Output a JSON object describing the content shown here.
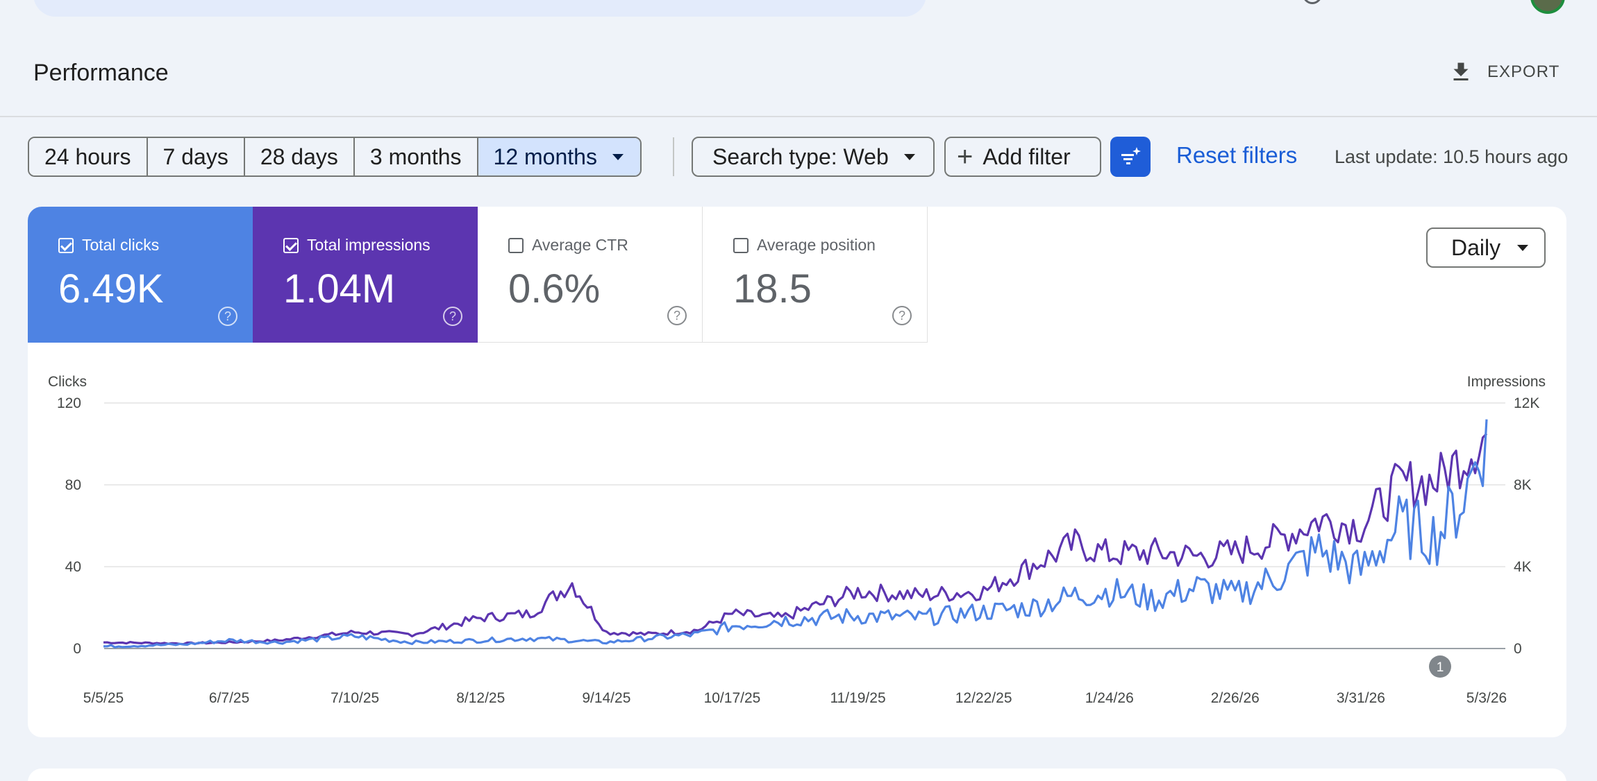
{
  "header": {
    "title": "Performance",
    "export_label": "EXPORT"
  },
  "filters": {
    "date_ranges": [
      "24 hours",
      "7 days",
      "28 days",
      "3 months",
      "12 months"
    ],
    "selected_range": "12 months",
    "search_type": "Search type: Web",
    "add_filter": "Add filter",
    "reset": "Reset filters",
    "last_update": "Last update: 10.5 hours ago"
  },
  "metrics": [
    {
      "label": "Total clicks",
      "value": "6.49K",
      "checked": true
    },
    {
      "label": "Total impressions",
      "value": "1.04M",
      "checked": true
    },
    {
      "label": "Average CTR",
      "value": "0.6%",
      "checked": false
    },
    {
      "label": "Average position",
      "value": "18.5",
      "checked": false
    }
  ],
  "granularity": "Daily",
  "annotation_marker": "1",
  "colors": {
    "clicks": "#4e83e3",
    "impressions": "#5c35b0",
    "accent": "#1f5dd8"
  },
  "chart_data": {
    "type": "line",
    "ylabel_left": "Clicks",
    "ylabel_right": "Impressions",
    "y_left_ticks": [
      "120",
      "80",
      "40",
      "0"
    ],
    "y_right_ticks": [
      "12K",
      "8K",
      "4K",
      "0"
    ],
    "ylim_left": [
      0,
      120
    ],
    "ylim_right": [
      0,
      12000
    ],
    "x_ticks": [
      "5/5/25",
      "6/7/25",
      "7/10/25",
      "8/12/25",
      "9/14/25",
      "10/17/25",
      "11/19/25",
      "12/22/25",
      "1/24/26",
      "2/26/26",
      "3/31/26",
      "5/3/26"
    ],
    "grid": true,
    "series": [
      {
        "name": "Clicks",
        "axis": "left",
        "x": [
          "5/5/25",
          "5/26/25",
          "6/7/25",
          "6/20/25",
          "7/10/25",
          "7/25/25",
          "8/12/25",
          "8/25/25",
          "9/5/25",
          "9/14/25",
          "9/25/25",
          "10/8/25",
          "10/17/25",
          "10/30/25",
          "11/19/25",
          "12/5/25",
          "12/22/25",
          "1/3/26",
          "1/15/26",
          "1/24/26",
          "2/5/26",
          "2/16/26",
          "2/26/26",
          "3/10/26",
          "3/20/26",
          "3/31/26",
          "4/10/26",
          "4/20/26",
          "4/28/26",
          "5/3/26"
        ],
        "values": [
          1,
          2,
          4,
          3,
          6,
          3,
          4,
          5,
          4,
          3,
          5,
          7,
          11,
          14,
          16,
          15,
          18,
          20,
          26,
          28,
          24,
          30,
          26,
          36,
          48,
          38,
          60,
          55,
          78,
          112
        ]
      },
      {
        "name": "Impressions",
        "axis": "right",
        "x": [
          "5/5/25",
          "5/26/25",
          "6/7/25",
          "6/20/25",
          "7/10/25",
          "7/25/25",
          "8/12/25",
          "8/25/25",
          "9/5/25",
          "9/14/25",
          "9/25/25",
          "10/8/25",
          "10/17/25",
          "10/30/25",
          "11/19/25",
          "12/5/25",
          "12/22/25",
          "1/3/26",
          "1/15/26",
          "1/24/26",
          "2/5/26",
          "2/16/26",
          "2/26/26",
          "3/10/26",
          "3/20/26",
          "3/31/26",
          "4/10/26",
          "4/20/26",
          "4/28/26",
          "5/3/26"
        ],
        "values": [
          300,
          250,
          300,
          400,
          800,
          700,
          1500,
          1700,
          3200,
          800,
          700,
          900,
          1700,
          1500,
          2800,
          2600,
          2800,
          4000,
          5100,
          4600,
          4700,
          4500,
          4700,
          5400,
          6300,
          6000,
          8000,
          8200,
          9600,
          10500
        ]
      }
    ]
  }
}
